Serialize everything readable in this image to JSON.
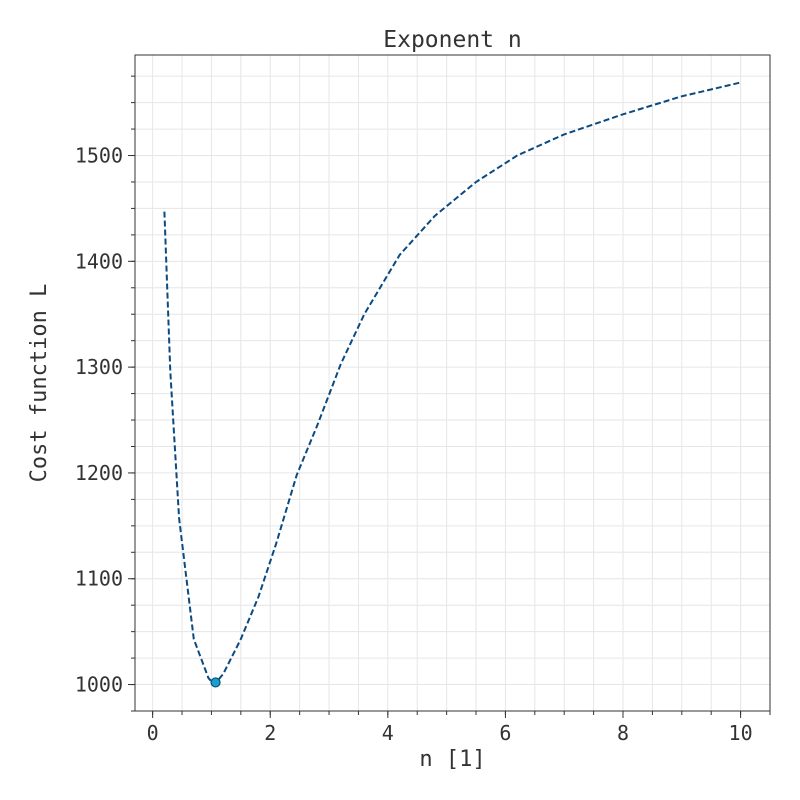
{
  "chart_data": {
    "type": "line",
    "title": "Exponent n",
    "xlabel": "n [1]",
    "ylabel": "Cost function L",
    "xlim": [
      -0.3,
      10.5
    ],
    "ylim": [
      975,
      1595
    ],
    "xticks": [
      0,
      2,
      4,
      6,
      8,
      10
    ],
    "yticks": [
      1000,
      1100,
      1200,
      1300,
      1400,
      1500
    ],
    "grid": true,
    "series": [
      {
        "color": "#0b4a80",
        "x": [
          0.2,
          0.3,
          0.45,
          0.7,
          0.95,
          1.05,
          1.2,
          1.5,
          1.8,
          2.1,
          2.45,
          2.8,
          3.2,
          3.6,
          4.2,
          4.8,
          5.5,
          6.2,
          7.0,
          8.0,
          9.0,
          10.0
        ],
        "y": [
          1447,
          1296,
          1157,
          1043,
          1006,
          1000,
          1010,
          1043,
          1083,
          1133,
          1198,
          1245,
          1303,
          1350,
          1406,
          1443,
          1475,
          1500,
          1520,
          1539,
          1556,
          1569
        ]
      }
    ],
    "marker": {
      "x": 1.07,
      "y": 1002,
      "fill": "#17a0c8",
      "stroke": "#0b4a80"
    }
  }
}
